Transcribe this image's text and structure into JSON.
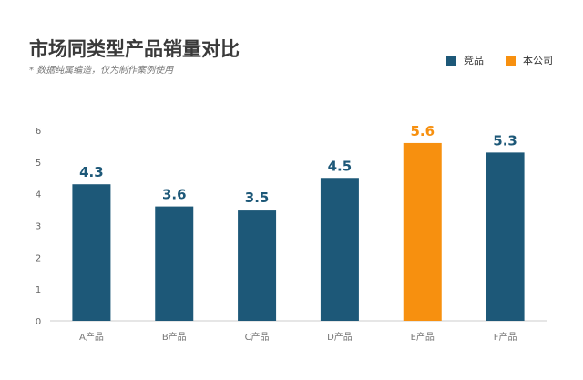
{
  "chart_data": {
    "type": "bar",
    "title": "市场同类型产品销量对比",
    "subtitle": "* 数据纯属编造，仅为制作案例使用",
    "categories": [
      "A产品",
      "B产品",
      "C产品",
      "D产品",
      "E产品",
      "F产品"
    ],
    "values": [
      4.3,
      3.6,
      3.5,
      4.5,
      5.6,
      5.3
    ],
    "series_of_bar": [
      "竞品",
      "竞品",
      "竞品",
      "竞品",
      "本公司",
      "竞品"
    ],
    "legend": [
      {
        "name": "竞品",
        "color": "#1d5878"
      },
      {
        "name": "本公司",
        "color": "#f7900f"
      }
    ],
    "ylim": [
      0,
      6
    ],
    "yticks": [
      0,
      1,
      2,
      3,
      4,
      5,
      6
    ],
    "grid": false,
    "legend_position": "top-right"
  }
}
